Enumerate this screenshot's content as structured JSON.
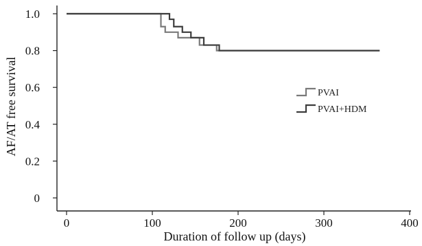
{
  "chart_data": {
    "type": "line",
    "step": true,
    "xlabel": "Duration of follow up (days)",
    "ylabel": "AF/AT free survival",
    "xlim": [
      0,
      400
    ],
    "ylim": [
      0,
      1.0
    ],
    "x_ticks": [
      0,
      100,
      200,
      300,
      400
    ],
    "x_tick_labels": [
      "0",
      "100",
      "200",
      "300",
      "400"
    ],
    "y_ticks": [
      0,
      0.2,
      0.4,
      0.6,
      0.8,
      1.0
    ],
    "y_tick_labels": [
      "0",
      "0.2",
      "0.4",
      "0.6",
      "0.8",
      "1.0"
    ],
    "grid": false,
    "legend_position": "right",
    "series": [
      {
        "name": "PVAI",
        "color": "#7a7a7a",
        "x": [
          0,
          105,
          110,
          115,
          130,
          155,
          175,
          365
        ],
        "y": [
          1.0,
          1.0,
          0.93,
          0.9,
          0.87,
          0.83,
          0.8,
          0.8
        ]
      },
      {
        "name": "PVAI+HDM",
        "color": "#3d3d3d",
        "x": [
          0,
          107,
          120,
          125,
          135,
          145,
          160,
          178,
          365
        ],
        "y": [
          1.0,
          1.0,
          0.97,
          0.93,
          0.9,
          0.87,
          0.83,
          0.8,
          0.8
        ]
      }
    ]
  }
}
